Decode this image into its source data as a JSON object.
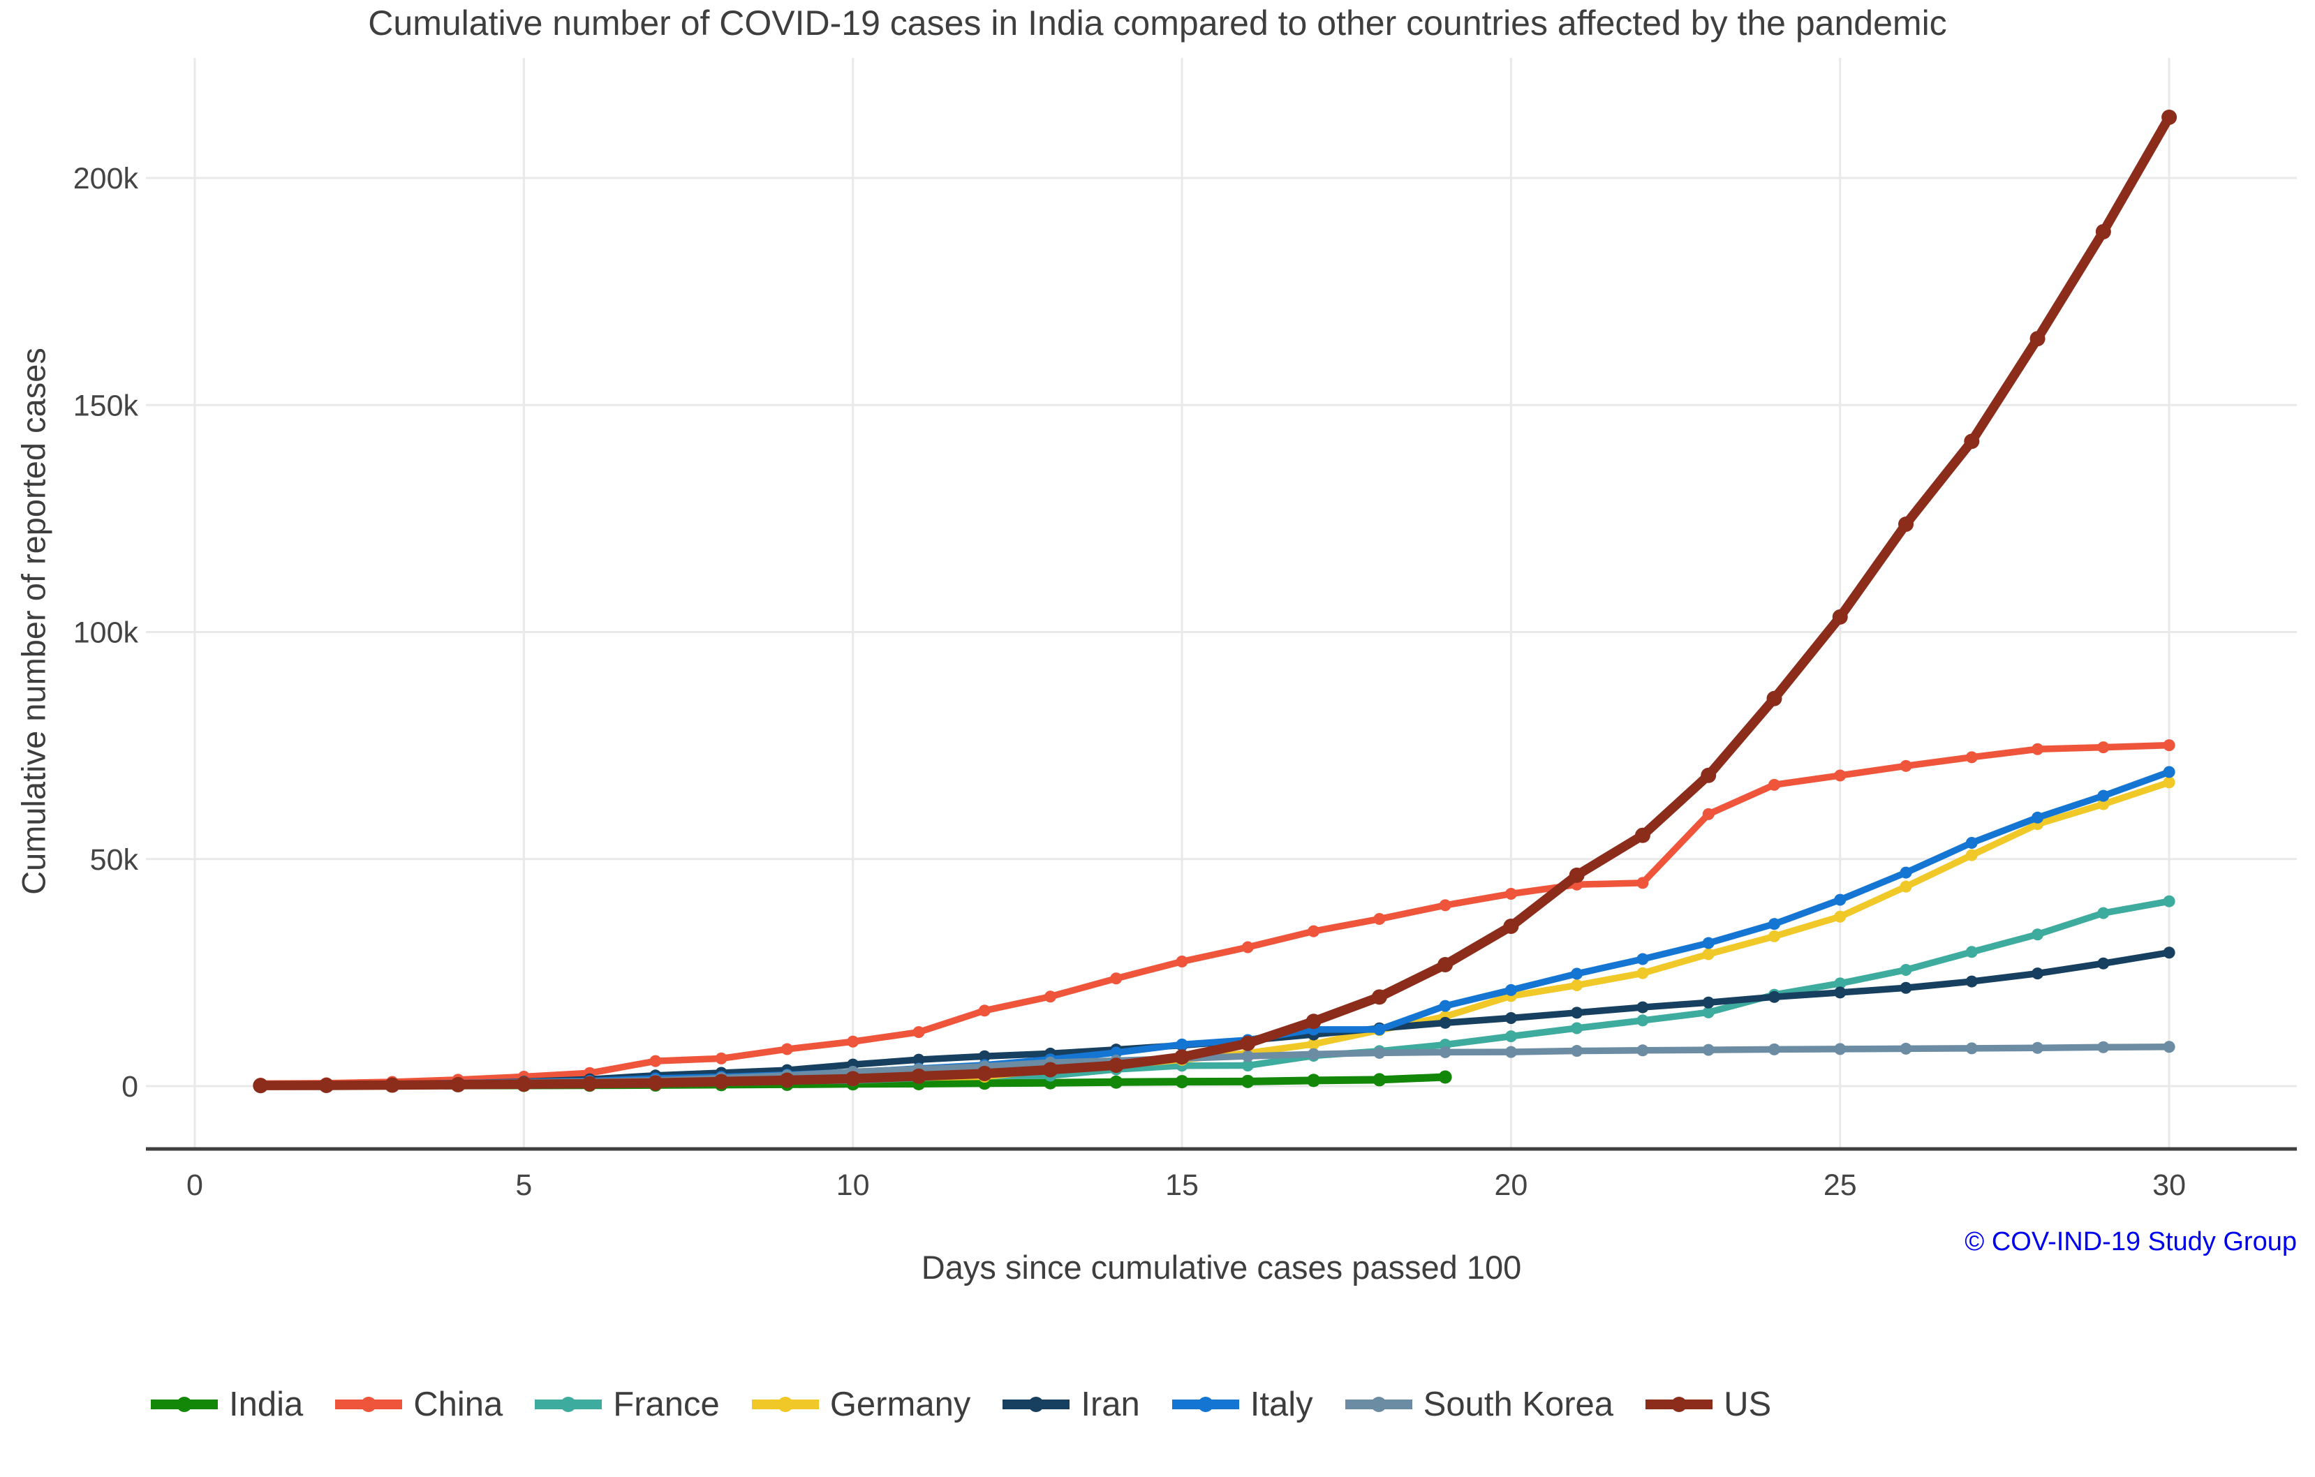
{
  "watermark": "© COV-IND-19 Study Group",
  "chart_data": {
    "type": "line",
    "title": "Cumulative number of COVID-19 cases in India compared to other countries affected by the pandemic",
    "xlabel": "Days since cumulative cases passed 100",
    "ylabel": "Cumulative number of reported cases",
    "x_description": "day index since cumulative cases passed 100; each series starts at day 1",
    "xlim": [
      -0.75,
      31.9
    ],
    "ylim": [
      -14000,
      226500
    ],
    "grid": true,
    "legend_position": "bottom",
    "xticks": [
      0,
      5,
      10,
      15,
      20,
      25,
      30
    ],
    "yticks": [
      {
        "value": 0,
        "label": "0"
      },
      {
        "value": 50000,
        "label": "50k"
      },
      {
        "value": 100000,
        "label": "100k"
      },
      {
        "value": 150000,
        "label": "150k"
      },
      {
        "value": 200000,
        "label": "200k"
      }
    ],
    "series": [
      {
        "name": "India",
        "color": "#138808",
        "values": [
          102,
          113,
          119,
          142,
          156,
          194,
          244,
          330,
          396,
          499,
          536,
          657,
          727,
          887,
          987,
          1024,
          1251,
          1397,
          1998
        ]
      },
      {
        "name": "China",
        "color": "#ee553b",
        "values": [
          548,
          643,
          920,
          1406,
          2075,
          2877,
          5509,
          6087,
          8141,
          9802,
          11891,
          16630,
          19716,
          23707,
          27440,
          30587,
          34110,
          36814,
          39829,
          42354,
          44386,
          44759,
          59895,
          66358,
          68413,
          70513,
          72434,
          74211,
          74619,
          75077
        ]
      },
      {
        "name": "France",
        "color": "#3dab9e",
        "values": [
          100,
          130,
          191,
          204,
          288,
          380,
          656,
          959,
          1136,
          1219,
          1794,
          2293,
          2293,
          3681,
          4496,
          4532,
          6683,
          7715,
          9124,
          10970,
          12758,
          14463,
          16243,
          20123,
          22622,
          25600,
          29551,
          33402,
          38105,
          40708
        ]
      },
      {
        "name": "Germany",
        "color": "#f0c929",
        "values": [
          130,
          159,
          196,
          262,
          482,
          670,
          799,
          1040,
          1176,
          1457,
          1908,
          2078,
          3675,
          4585,
          5795,
          7272,
          9257,
          12327,
          15320,
          19848,
          22213,
          24873,
          29056,
          32986,
          37323,
          43938,
          50871,
          57695,
          62095,
          66885
        ]
      },
      {
        "name": "Iran",
        "color": "#173f5f",
        "values": [
          139,
          245,
          388,
          593,
          978,
          1501,
          2336,
          2922,
          3513,
          4747,
          5823,
          6566,
          7161,
          8042,
          9000,
          10075,
          11364,
          12729,
          13938,
          14991,
          16169,
          17361,
          18407,
          19644,
          20610,
          21638,
          23049,
          24811,
          27017,
          29406
        ]
      },
      {
        "name": "Italy",
        "color": "#1476d2",
        "values": [
          229,
          322,
          453,
          655,
          888,
          1128,
          1694,
          2036,
          2502,
          3089,
          3858,
          4636,
          5883,
          7375,
          9172,
          10149,
          12462,
          12462,
          17660,
          21157,
          24747,
          27980,
          31506,
          35713,
          41035,
          47021,
          53578,
          59138,
          63927,
          69176
        ]
      },
      {
        "name": "South Korea",
        "color": "#6c8ca3",
        "values": [
          104,
          204,
          433,
          602,
          833,
          977,
          1261,
          1766,
          2337,
          3150,
          3736,
          4335,
          5186,
          5621,
          6088,
          6593,
          7041,
          7314,
          7478,
          7513,
          7755,
          7869,
          7979,
          8086,
          8162,
          8236,
          8320,
          8413,
          8565,
          8652
        ]
      },
      {
        "name": "US",
        "color": "#8c2d1c",
        "values": [
          124,
          158,
          221,
          319,
          435,
          541,
          704,
          994,
          1301,
          1630,
          2183,
          2771,
          3613,
          4596,
          6421,
          9415,
          14250,
          19624,
          26747,
          35206,
          46442,
          55231,
          68440,
          85356,
          103321,
          123750,
          142004,
          164610,
          188172,
          213372
        ]
      }
    ],
    "style": {
      "grid_color": "#e9e9e9",
      "axis_line_color": "#3f3f3f",
      "tick_label_color": "#444444",
      "title_color": "#3e3e3e",
      "watermark_color": "#0000ee",
      "background": "#ffffff"
    }
  }
}
